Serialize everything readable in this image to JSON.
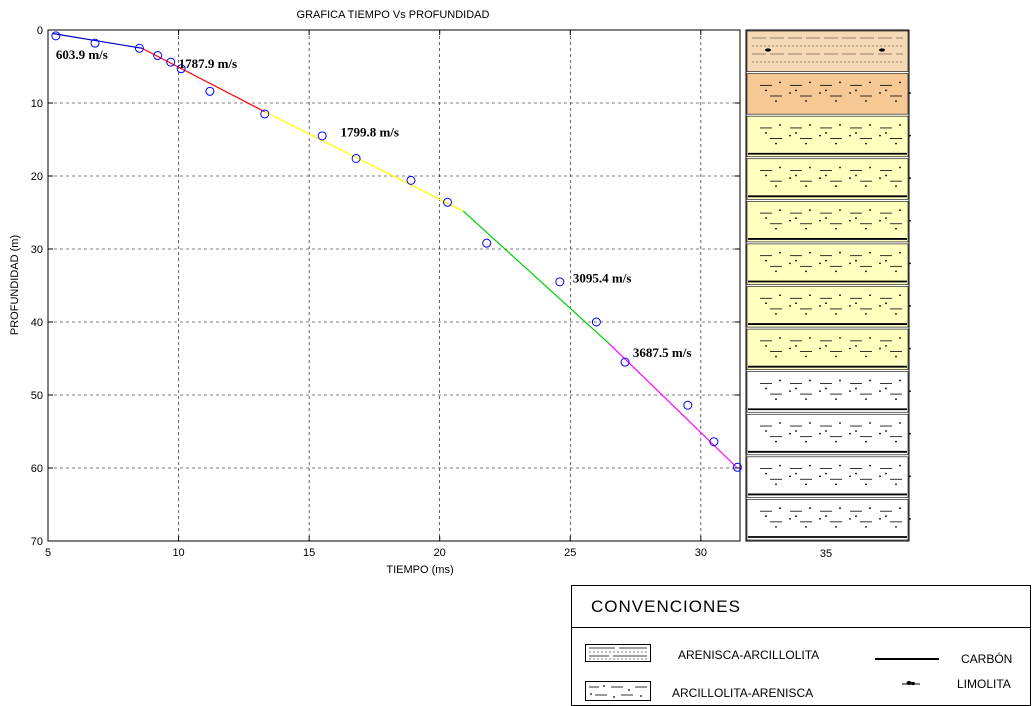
{
  "chart_data": {
    "type": "scatter",
    "title": "GRAFICA TIEMPO Vs PROFUNDIDAD",
    "xlabel": "TIEMPO (ms)",
    "ylabel": "PROFUNDIDAD (m)",
    "xlim": [
      5,
      31.5
    ],
    "ylim": [
      70,
      0
    ],
    "y_inverted": true,
    "grid": true,
    "x_ticks": [
      5,
      10,
      15,
      20,
      25,
      30
    ],
    "y_ticks": [
      0,
      10,
      20,
      30,
      40,
      50,
      60,
      70
    ],
    "strip_tick_label": "35",
    "points": {
      "x": [
        5.3,
        6.8,
        8.5,
        9.2,
        9.7,
        10.1,
        11.2,
        13.3,
        15.5,
        16.8,
        18.9,
        20.3,
        21.8,
        24.6,
        26.0,
        27.1,
        29.5,
        30.5,
        31.4
      ],
      "y": [
        0.8,
        1.8,
        2.5,
        3.5,
        4.4,
        5.3,
        8.4,
        11.5,
        14.5,
        17.6,
        20.6,
        23.6,
        29.2,
        34.5,
        40.0,
        45.5,
        51.4,
        56.4,
        59.9
      ]
    },
    "series": [
      {
        "name": "603.9 m/s",
        "color": "#0000cc",
        "x": [
          5.2,
          8.6
        ],
        "y": [
          0.5,
          2.5
        ]
      },
      {
        "name": "1787.9 m/s",
        "color": "#ff0000",
        "x": [
          8.6,
          13.3
        ],
        "y": [
          2.5,
          11.2
        ]
      },
      {
        "name": "1799.8  m/s",
        "color": "#ffff00",
        "x": [
          13.3,
          20.9
        ],
        "y": [
          11.2,
          24.8
        ]
      },
      {
        "name": "3095.4 m/s",
        "color": "#00cc00",
        "x": [
          20.9,
          26.5
        ],
        "y": [
          24.8,
          43.0
        ]
      },
      {
        "name": "3687.5 m/s",
        "color": "#ff00ff",
        "x": [
          26.5,
          31.4
        ],
        "y": [
          43.0,
          60.0
        ]
      }
    ],
    "lithology_column": [
      {
        "type": "arenisca-arcillolita",
        "color": "#f5d9b5"
      },
      {
        "type": "arcillolita-arenisca",
        "color": "#f5c894"
      },
      {
        "type": "arcillolita-arenisca",
        "color": "#ffffc0"
      },
      {
        "type": "arcillolita-arenisca",
        "color": "#ffffc0"
      },
      {
        "type": "arcillolita-arenisca",
        "color": "#ffffc0"
      },
      {
        "type": "arcillolita-arenisca",
        "color": "#ffffc0"
      },
      {
        "type": "arcillolita-arenisca",
        "color": "#ffffc0"
      },
      {
        "type": "arcillolita-arenisca",
        "color": "#ffffc0"
      },
      {
        "type": "arcillolita-arenisca",
        "color": "#ffffff"
      },
      {
        "type": "arcillolita-arenisca",
        "color": "#ffffff"
      },
      {
        "type": "arcillolita-arenisca",
        "color": "#ffffff"
      },
      {
        "type": "arcillolita-arenisca",
        "color": "#ffffff"
      }
    ]
  },
  "legend": {
    "title": "CONVENCIONES",
    "items": [
      {
        "label": "ARENISCA-ARCILLOLITA",
        "icon": "arenisca-arcillolita-swatch"
      },
      {
        "label": "ARCILLOLITA-ARENISCA",
        "icon": "arcillolita-arenisca-swatch"
      },
      {
        "label": "CARBÓN",
        "icon": "thick-line-swatch"
      },
      {
        "label": "LIMOLITA",
        "icon": "limolita-symbol"
      }
    ]
  }
}
